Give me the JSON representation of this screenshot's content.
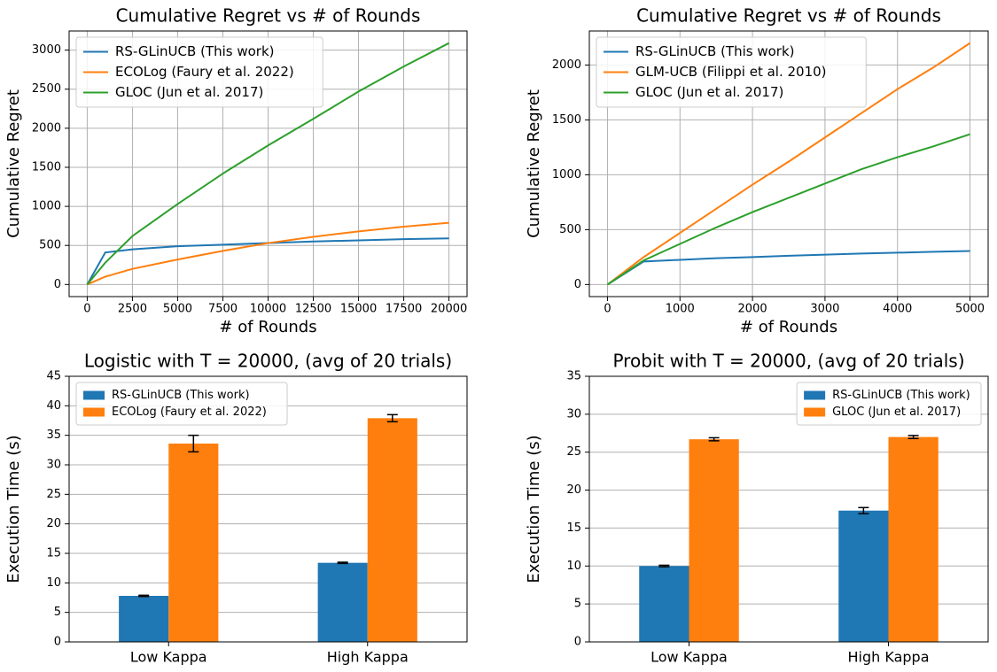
{
  "chart_data": [
    {
      "type": "line",
      "title": "Cumulative Regret vs # of Rounds",
      "x_label": "# of Rounds",
      "y_label": "Cumulative Regret",
      "x": [
        0,
        1000,
        2500,
        5000,
        7500,
        10000,
        12500,
        15000,
        17500,
        20000
      ],
      "series": [
        {
          "name": "RS-GLinUCB (This work)",
          "color": "#1f77b4",
          "values": [
            0,
            410,
            450,
            490,
            510,
            530,
            550,
            565,
            580,
            590
          ]
        },
        {
          "name": "ECOLog (Faury et al. 2022)",
          "color": "#ff7f0e",
          "values": [
            0,
            100,
            200,
            320,
            430,
            530,
            610,
            680,
            740,
            790
          ]
        },
        {
          "name": "GLOC (Jun et al. 2017)",
          "color": "#2ca02c",
          "values": [
            0,
            280,
            620,
            1030,
            1420,
            1780,
            2120,
            2470,
            2790,
            3090
          ]
        }
      ],
      "xlim": [
        -1000,
        21000
      ],
      "xticks": [
        0,
        2500,
        5000,
        7500,
        10000,
        12500,
        15000,
        17500,
        20000
      ],
      "ylim": [
        -155,
        3245
      ],
      "yticks": [
        0,
        500,
        1000,
        1500,
        2000,
        2500,
        3000
      ],
      "grid": "both",
      "legend": "upper left"
    },
    {
      "type": "line",
      "title": "Cumulative Regret vs # of Rounds",
      "x_label": "# of Rounds",
      "y_label": "Cumulative Regret",
      "x": [
        0,
        500,
        1000,
        1500,
        2000,
        2500,
        3000,
        3500,
        4000,
        4500,
        5000
      ],
      "series": [
        {
          "name": "RS-GLinUCB (This work)",
          "color": "#1f77b4",
          "values": [
            0,
            210,
            225,
            240,
            250,
            262,
            272,
            282,
            290,
            298,
            305
          ]
        },
        {
          "name": "GLM-UCB (Filippi et al. 2010)",
          "color": "#ff7f0e",
          "values": [
            0,
            250,
            470,
            690,
            910,
            1120,
            1340,
            1560,
            1780,
            1980,
            2200
          ]
        },
        {
          "name": "GLOC (Jun et al. 2017)",
          "color": "#2ca02c",
          "values": [
            0,
            220,
            370,
            520,
            660,
            790,
            920,
            1050,
            1160,
            1260,
            1370
          ]
        }
      ],
      "xlim": [
        -250,
        5250
      ],
      "xticks": [
        0,
        1000,
        2000,
        3000,
        4000,
        5000
      ],
      "ylim": [
        -110,
        2310
      ],
      "yticks": [
        0,
        500,
        1000,
        1500,
        2000
      ],
      "grid": "both",
      "legend": "upper left"
    },
    {
      "type": "bar",
      "title": "Logistic with T = 20000, (avg of 20 trials)",
      "y_label": "Execution Time (s)",
      "categories": [
        "Low Kappa",
        "High Kappa"
      ],
      "series": [
        {
          "name": "RS-GLinUCB (This work)",
          "color": "#1f77b4",
          "values": [
            7.8,
            13.4
          ],
          "errors": [
            0.1,
            0.1
          ]
        },
        {
          "name": "ECOLog (Faury et al. 2022)",
          "color": "#ff7f0e",
          "values": [
            33.6,
            37.9
          ],
          "errors": [
            1.4,
            0.6
          ]
        }
      ],
      "ylim": [
        0,
        45
      ],
      "yticks": [
        0,
        5,
        10,
        15,
        20,
        25,
        30,
        35,
        40,
        45
      ],
      "grid": "y",
      "legend": "upper left"
    },
    {
      "type": "bar",
      "title": "Probit with T = 20000, (avg of 20 trials)",
      "y_label": "Execution Time (s)",
      "categories": [
        "Low Kappa",
        "High Kappa"
      ],
      "series": [
        {
          "name": "RS-GLinUCB (This work)",
          "color": "#1f77b4",
          "values": [
            10.0,
            17.3
          ],
          "errors": [
            0.1,
            0.4
          ]
        },
        {
          "name": "GLOC (Jun et al. 2017)",
          "color": "#ff7f0e",
          "values": [
            26.7,
            27.0
          ],
          "errors": [
            0.2,
            0.2
          ]
        }
      ],
      "ylim": [
        0,
        35
      ],
      "yticks": [
        0,
        5,
        10,
        15,
        20,
        25,
        30,
        35
      ],
      "grid": "y",
      "legend": "upper right"
    }
  ]
}
